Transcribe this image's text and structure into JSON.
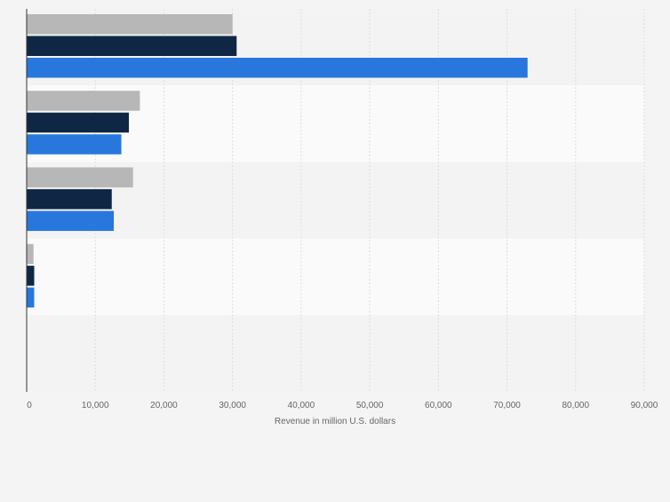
{
  "chart_data": {
    "type": "bar",
    "orientation": "horizontal",
    "categories": [
      "",
      "",
      "",
      "",
      ""
    ],
    "series": [
      {
        "values": [
          30000,
          16500,
          15500,
          1000,
          0
        ]
      },
      {
        "values": [
          30600,
          14900,
          12400,
          1100,
          0
        ]
      },
      {
        "values": [
          73000,
          13800,
          12700,
          1100,
          0
        ]
      }
    ],
    "series_colors": [
      "#b7b7b7",
      "#0f2745",
      "#2877dd"
    ],
    "band_colors": [
      "#f3f3f3",
      "#fafafa"
    ],
    "xlim": [
      0,
      90000
    ],
    "xticks": [
      "0",
      "10,000",
      "20,000",
      "30,000",
      "40,000",
      "50,000",
      "60,000",
      "70,000",
      "80,000",
      "90,000"
    ],
    "xlabel": "Revenue in million U.S. dollars",
    "grid": true,
    "legend": "none"
  }
}
